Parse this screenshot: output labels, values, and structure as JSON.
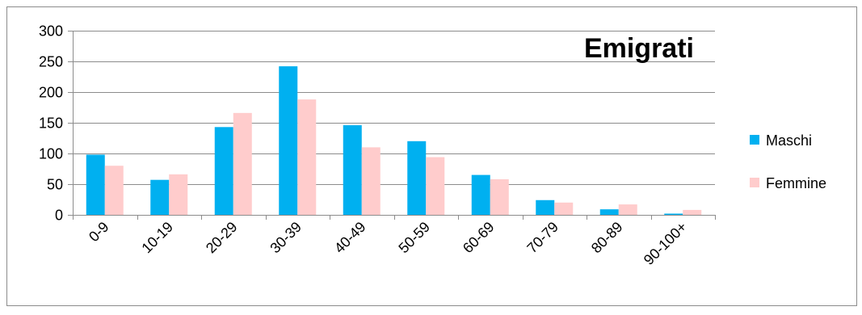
{
  "chart_data": {
    "type": "bar",
    "title": "Emigrati",
    "xlabel": "",
    "ylabel": "",
    "ylim": [
      0,
      300
    ],
    "yticks": [
      0,
      50,
      100,
      150,
      200,
      250,
      300
    ],
    "grid": true,
    "legend_position": "right",
    "categories": [
      "0-9",
      "10-19",
      "20-29",
      "30-39",
      "40-49",
      "50-59",
      "60-69",
      "70-79",
      "80-89",
      "90-100+"
    ],
    "series": [
      {
        "name": "Maschi",
        "color": "#00b0f0",
        "values": [
          98,
          57,
          143,
          242,
          146,
          120,
          65,
          24,
          9,
          2
        ]
      },
      {
        "name": "Femmine",
        "color": "#ffcccc",
        "values": [
          80,
          66,
          166,
          188,
          110,
          94,
          58,
          20,
          17,
          8
        ]
      }
    ]
  }
}
